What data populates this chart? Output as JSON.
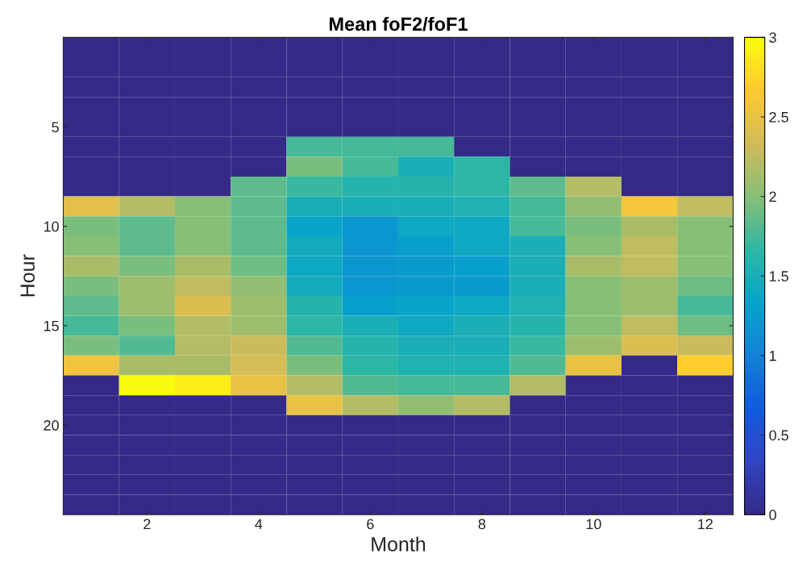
{
  "chart_data": {
    "type": "heatmap",
    "title": "Mean foF2/foF1",
    "xlabel": "Month",
    "ylabel": "Hour",
    "categories": [
      null,
      "2",
      null,
      "4",
      null,
      "6",
      null,
      "8",
      null,
      "10",
      null,
      "12"
    ],
    "y_categories": [
      null,
      null,
      null,
      null,
      "5",
      null,
      null,
      null,
      null,
      "10",
      null,
      null,
      null,
      null,
      "15",
      null,
      null,
      null,
      null,
      "20",
      null,
      null,
      null,
      null
    ],
    "cells": [
      [
        0,
        0,
        0,
        0,
        0,
        0,
        0,
        0,
        0,
        0,
        0,
        0
      ],
      [
        0,
        0,
        0,
        0,
        0,
        0,
        0,
        0,
        0,
        0,
        0,
        0
      ],
      [
        0,
        0,
        0,
        0,
        0,
        0,
        0,
        0,
        0,
        0,
        0,
        0
      ],
      [
        0,
        0,
        0,
        0,
        0,
        0,
        0,
        0,
        0,
        0,
        0,
        0
      ],
      [
        0,
        0,
        0,
        0,
        0,
        0,
        0,
        0,
        0,
        0,
        0,
        0
      ],
      [
        0,
        0,
        0,
        0,
        1.75,
        1.75,
        1.75,
        0,
        0,
        0,
        0,
        0
      ],
      [
        0,
        0,
        0,
        0,
        1.95,
        1.75,
        1.5,
        1.65,
        0,
        0,
        0,
        0
      ],
      [
        0,
        0,
        0,
        1.85,
        1.7,
        1.6,
        1.6,
        1.65,
        1.85,
        2.2,
        0,
        0
      ],
      [
        2.45,
        2.2,
        2.0,
        1.85,
        1.5,
        1.5,
        1.5,
        1.55,
        1.75,
        2.05,
        2.6,
        2.25
      ],
      [
        1.95,
        1.85,
        2.0,
        1.85,
        1.35,
        1.2,
        1.4,
        1.4,
        1.75,
        1.95,
        2.15,
        2.0
      ],
      [
        2.0,
        1.85,
        2.0,
        1.85,
        1.45,
        1.2,
        1.3,
        1.4,
        1.5,
        2.0,
        2.25,
        2.0
      ],
      [
        2.15,
        1.95,
        2.15,
        1.9,
        1.4,
        1.2,
        1.25,
        1.3,
        1.5,
        2.15,
        2.25,
        2.0
      ],
      [
        1.95,
        2.1,
        2.25,
        2.05,
        1.45,
        1.2,
        1.25,
        1.25,
        1.5,
        2.0,
        2.1,
        1.9
      ],
      [
        1.85,
        2.1,
        2.4,
        2.1,
        1.6,
        1.3,
        1.35,
        1.4,
        1.55,
        2.0,
        2.1,
        1.75
      ],
      [
        1.75,
        1.95,
        2.2,
        2.1,
        1.65,
        1.5,
        1.4,
        1.5,
        1.6,
        2.0,
        2.25,
        1.9
      ],
      [
        1.95,
        1.8,
        2.2,
        2.3,
        1.8,
        1.6,
        1.5,
        1.5,
        1.7,
        2.1,
        2.4,
        2.3
      ],
      [
        2.55,
        2.15,
        2.15,
        2.35,
        1.95,
        1.65,
        1.55,
        1.55,
        1.8,
        2.5,
        0,
        2.7
      ],
      [
        0,
        3.0,
        2.9,
        2.5,
        2.2,
        1.8,
        1.75,
        1.75,
        2.2,
        0,
        0,
        0
      ],
      [
        0,
        0,
        0,
        0,
        2.5,
        2.2,
        2.05,
        2.2,
        0,
        0,
        0,
        0
      ],
      [
        0,
        0,
        0,
        0,
        0,
        0,
        0,
        0,
        0,
        0,
        0,
        0
      ],
      [
        0,
        0,
        0,
        0,
        0,
        0,
        0,
        0,
        0,
        0,
        0,
        0
      ],
      [
        0,
        0,
        0,
        0,
        0,
        0,
        0,
        0,
        0,
        0,
        0,
        0
      ],
      [
        0,
        0,
        0,
        0,
        0,
        0,
        0,
        0,
        0,
        0,
        0,
        0
      ],
      [
        0,
        0,
        0,
        0,
        0,
        0,
        0,
        0,
        0,
        0,
        0,
        0
      ]
    ],
    "clim": [
      0,
      3
    ],
    "cticks": [
      0,
      0.5,
      1,
      1.5,
      2,
      2.5,
      3
    ]
  }
}
